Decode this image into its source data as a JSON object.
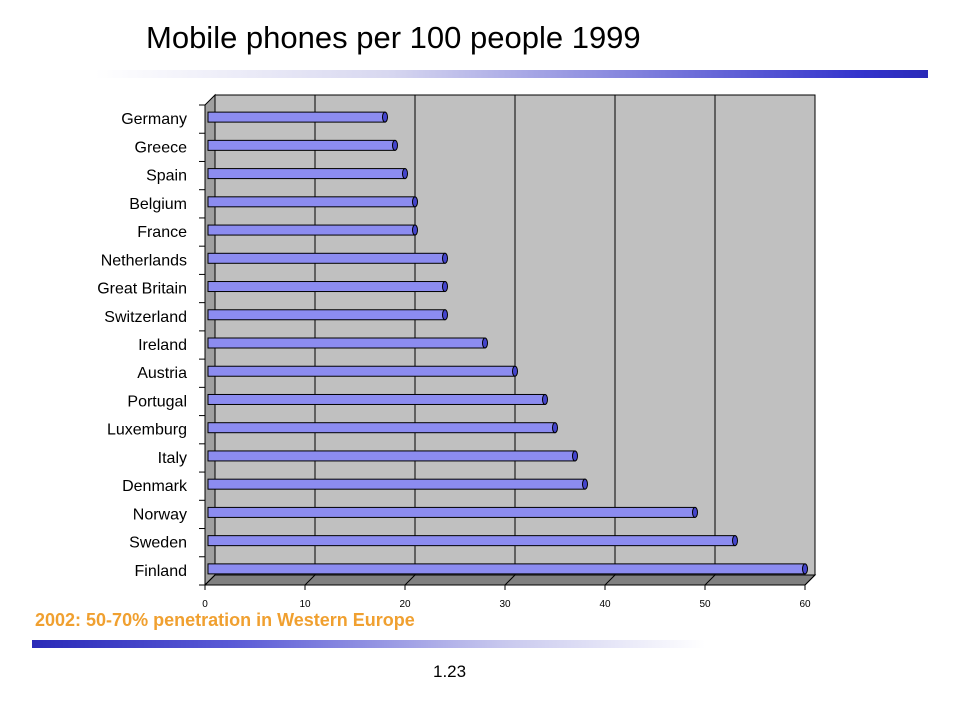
{
  "slide": {
    "title": "Mobile phones per 100 people 1999",
    "note": "2002: 50-70% penetration in Western Europe",
    "page_number": "1.23"
  },
  "colors": {
    "bar_fill": "#8c8cf0",
    "bar_end": "#4444cc",
    "plot_background": "#c0c0c0",
    "note_text": "#f0a030",
    "accent_rule": "#3333cc"
  },
  "chart_data": {
    "type": "bar",
    "orientation": "horizontal",
    "title": "",
    "xlabel": "",
    "ylabel": "",
    "categories": [
      "Germany",
      "Greece",
      "Spain",
      "Belgium",
      "France",
      "Netherlands",
      "Great Britain",
      "Switzerland",
      "Ireland",
      "Austria",
      "Portugal",
      "Luxemburg",
      "Italy",
      "Denmark",
      "Norway",
      "Sweden",
      "Finland"
    ],
    "values": [
      18,
      19,
      20,
      21,
      21,
      24,
      24,
      24,
      28,
      31,
      34,
      35,
      37,
      38,
      49,
      53,
      60
    ],
    "xlim": [
      0,
      60
    ],
    "xticks": [
      "0",
      "10",
      "20",
      "30",
      "40",
      "50",
      "60"
    ],
    "grid": true,
    "legend": "none"
  }
}
